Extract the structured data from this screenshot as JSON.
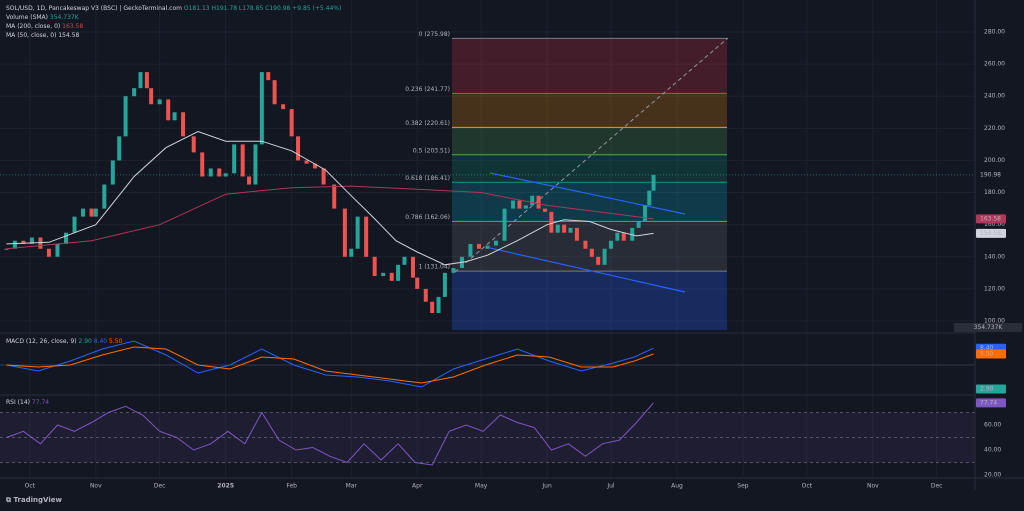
{
  "header": {
    "symbol": "SOL/USD, 1D, Pancakeswap V3 (BSC) | GeckoTerminal.com",
    "ohlc": "O181.13 H191.78 L178.85 C190.98 +9.85 (+5.44%)",
    "volume_name": "Volume (SMA)",
    "volume_value": "354.737K"
  },
  "footer": {
    "brand": "TradingView"
  },
  "chart_data": [
    {
      "type": "candlestick",
      "color_up": "#26a69a",
      "color_down": "#ef5350",
      "x": [
        0,
        4,
        8,
        12,
        16,
        20,
        24,
        28,
        32,
        36,
        40,
        42,
        46,
        50,
        53,
        56,
        60,
        63,
        66,
        68,
        72,
        76,
        79,
        83,
        88,
        92,
        96,
        100,
        103,
        107,
        111,
        114,
        117,
        120,
        123,
        126,
        130,
        134,
        137,
        141,
        145,
        149,
        154,
        159,
        162,
        165,
        169,
        173,
        177,
        181,
        184,
        187,
        191,
        193,
        197,
        200,
        203,
        206,
        210,
        214,
        218,
        222,
        226,
        230,
        234,
        238,
        241,
        244,
        247,
        250,
        253,
        256,
        259,
        262,
        265,
        268,
        272,
        275,
        278,
        281,
        284,
        287,
        290,
        294,
        297,
        300,
        302,
        304
      ],
      "values": [
        145,
        150,
        148,
        152,
        145,
        140,
        148,
        155,
        165,
        170,
        165,
        170,
        185,
        200,
        215,
        240,
        245,
        255,
        245,
        235,
        238,
        225,
        230,
        215,
        205,
        190,
        195,
        190,
        192,
        210,
        190,
        185,
        210,
        255,
        250,
        235,
        232,
        215,
        200,
        198,
        195,
        185,
        170,
        140,
        145,
        165,
        140,
        128,
        130,
        125,
        135,
        140,
        127,
        120,
        112,
        105,
        115,
        130,
        133,
        140,
        148,
        145,
        147,
        150,
        170,
        175,
        170,
        172,
        178,
        170,
        168,
        155,
        160,
        155,
        158,
        150,
        145,
        140,
        135,
        145,
        150,
        155,
        150,
        158,
        162,
        172,
        181.13,
        190.98
      ],
      "xlim": [
        -3,
        455
      ],
      "ylim": [
        94.4,
        296.8
      ],
      "xticks": [
        {
          "value": 11,
          "label": "Oct"
        },
        {
          "value": 42,
          "label": "Nov"
        },
        {
          "value": 72,
          "label": "Dec"
        },
        {
          "value": 103,
          "label": "2025"
        },
        {
          "value": 134,
          "label": "Feb"
        },
        {
          "value": 162,
          "label": "Mar"
        },
        {
          "value": 193,
          "label": "Apr"
        },
        {
          "value": 223,
          "label": "May"
        },
        {
          "value": 254,
          "label": "Jun"
        },
        {
          "value": 284,
          "label": "Jul"
        },
        {
          "value": 315,
          "label": "Aug"
        },
        {
          "value": 346,
          "label": "Sep"
        },
        {
          "value": 376,
          "label": "Oct"
        },
        {
          "value": 407,
          "label": "Nov"
        },
        {
          "value": 437,
          "label": "Dec"
        }
      ],
      "yticks": [
        {
          "value": 100,
          "label": "100.00"
        },
        {
          "value": 120,
          "label": "120.00"
        },
        {
          "value": 140,
          "label": "140.00"
        },
        {
          "value": 160,
          "label": "160.00"
        },
        {
          "value": 180,
          "label": "180.00"
        },
        {
          "value": 200,
          "label": "200.00"
        },
        {
          "value": 220,
          "label": "220.00"
        },
        {
          "value": 240,
          "label": "240.00"
        },
        {
          "value": 260,
          "label": "260.00"
        },
        {
          "value": 280,
          "label": "280.00"
        }
      ],
      "grid": true,
      "series": [
        {
          "name": "MA (200, close, 0)",
          "color": "#b2365a",
          "last_label": "163.58",
          "last_value": 163.58,
          "x": [
            0,
            40,
            72,
            103,
            134,
            162,
            193,
            223,
            254,
            284,
            304
          ],
          "values": [
            145,
            150,
            160,
            179,
            183,
            184,
            182,
            180,
            172,
            167,
            163.58
          ]
        },
        {
          "name": "MA (50, close, 0)",
          "color": "#d1d4dc",
          "last_label": "154.58",
          "last_value": 154.58,
          "x": [
            0,
            20,
            42,
            60,
            75,
            90,
            103,
            120,
            134,
            150,
            162,
            172,
            183,
            193,
            206,
            216,
            226,
            240,
            254,
            262,
            274,
            284,
            296,
            304
          ],
          "values": [
            148,
            149,
            160,
            190,
            208,
            218,
            212,
            212,
            206,
            194,
            178,
            165,
            150,
            143,
            135,
            137,
            141,
            150,
            160,
            163,
            162,
            157,
            153,
            154.58
          ]
        }
      ],
      "fib_levels": [
        {
          "value": 275.98,
          "label": "0 (275.98)",
          "color": "#787b86"
        },
        {
          "value": 241.77,
          "label": "0.236 (241.77)",
          "color": "#f23645"
        },
        {
          "value": 220.61,
          "label": "0.382 (220.61)",
          "color": "#ff9800"
        },
        {
          "value": 203.51,
          "label": "0.5 (203.51)",
          "color": "#4caf50"
        },
        {
          "value": 186.41,
          "label": "0.618 (186.41)",
          "color": "#089981"
        },
        {
          "value": 162.06,
          "label": "0.786 (162.06)",
          "color": "#00bcd4"
        },
        {
          "value": 131.04,
          "label": "1 (131.04)",
          "color": "#787b86"
        }
      ],
      "last_price": {
        "value": 190.98,
        "label": "190.98",
        "color": "#26a69a"
      }
    },
    {
      "type": "line",
      "title": "MACD (12, 26, close, 9)",
      "ylim": [
        -14,
        14
      ],
      "x": [
        0,
        15,
        30,
        45,
        60,
        75,
        90,
        105,
        120,
        135,
        150,
        165,
        180,
        195,
        210,
        225,
        240,
        255,
        270,
        285,
        295,
        304
      ],
      "series": [
        {
          "color": "#2962ff",
          "last_label": "8.40",
          "values": [
            0,
            -3,
            2,
            8,
            12,
            5,
            -4,
            0,
            8,
            0,
            -5,
            -6,
            -8,
            -11,
            -2,
            3,
            8,
            2,
            -3,
            1,
            4,
            8.4
          ]
        },
        {
          "color": "#ff6d00",
          "last_label": "5.50",
          "values": [
            0,
            -1,
            0,
            5,
            9,
            8,
            0,
            -2,
            4,
            3,
            -3,
            -5,
            -7,
            -9,
            -6,
            0,
            5,
            4,
            -1,
            -1,
            2,
            5.5
          ]
        }
      ],
      "histogram_label": "2.90",
      "histogram_color": "#26a69a"
    },
    {
      "type": "line",
      "title": "RSI (14)",
      "ylim": [
        16,
        81.6
      ],
      "yticks": [
        {
          "value": 60,
          "label": "60.00"
        },
        {
          "value": 40,
          "label": "40.00"
        },
        {
          "value": 20,
          "label": "20.00"
        }
      ],
      "bands": [
        30,
        50,
        70
      ],
      "x": [
        0,
        8,
        16,
        24,
        32,
        40,
        48,
        56,
        64,
        72,
        80,
        88,
        96,
        104,
        112,
        120,
        128,
        136,
        144,
        152,
        160,
        168,
        176,
        184,
        192,
        200,
        208,
        216,
        224,
        232,
        240,
        248,
        256,
        264,
        272,
        280,
        288,
        296,
        304
      ],
      "series": [
        {
          "color": "#7e57c2",
          "last_label": "77.74",
          "values": [
            50,
            55,
            45,
            60,
            55,
            62,
            70,
            75,
            68,
            55,
            50,
            40,
            45,
            55,
            45,
            70,
            48,
            40,
            42,
            35,
            30,
            45,
            32,
            45,
            30,
            28,
            55,
            60,
            55,
            68,
            62,
            58,
            40,
            45,
            35,
            45,
            48,
            62,
            77.74
          ]
        }
      ]
    }
  ]
}
